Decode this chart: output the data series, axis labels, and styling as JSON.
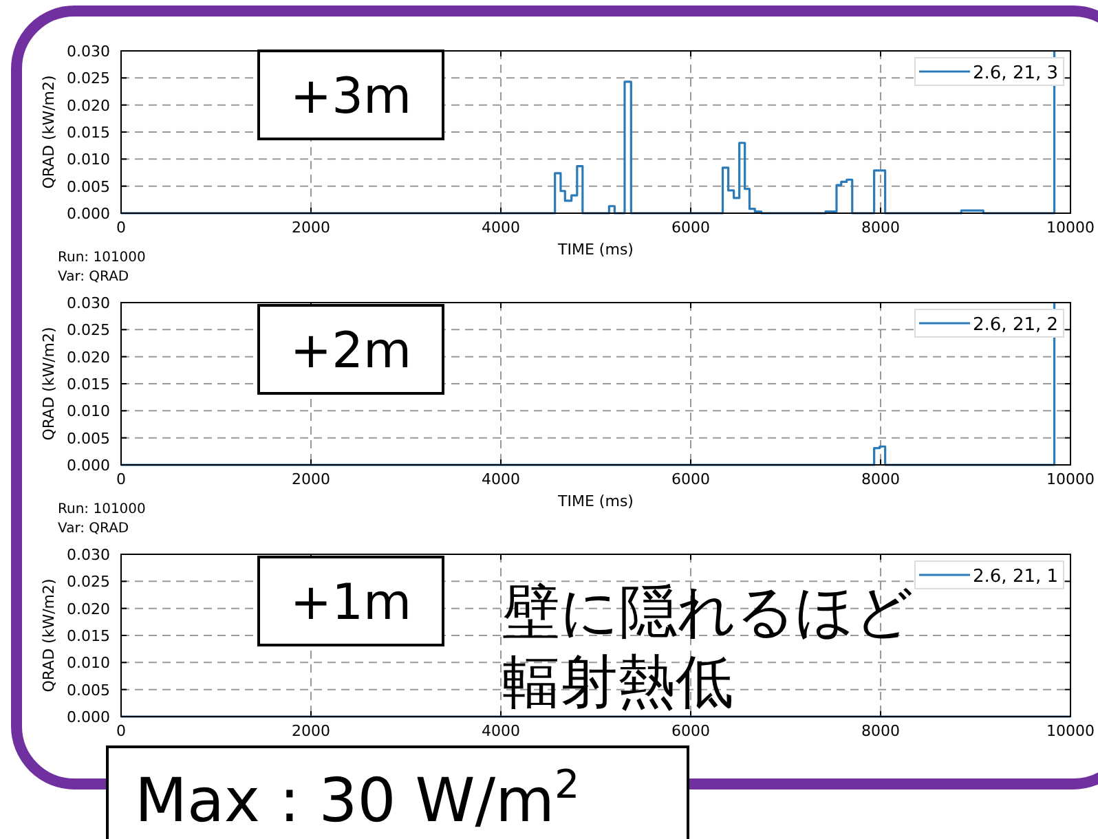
{
  "chart_data": [
    {
      "type": "step",
      "xlabel": "TIME (ms)",
      "ylabel": "QRAD (kW/m2)",
      "xlim": [
        0,
        10000
      ],
      "ylim": [
        0,
        0.03
      ],
      "xticks": [
        0,
        2000,
        4000,
        6000,
        8000,
        10000
      ],
      "yticks": [
        {
          "value": 0,
          "label": "0.000"
        },
        {
          "value": 0.005,
          "label": "0.005"
        },
        {
          "value": 0.01,
          "label": "0.010"
        },
        {
          "value": 0.015,
          "label": "0.015"
        },
        {
          "value": 0.02,
          "label": "0.020"
        },
        {
          "value": 0.025,
          "label": "0.025"
        },
        {
          "value": 0.03,
          "label": "0.030"
        }
      ],
      "grid": true,
      "legend": "top right",
      "x": [
        0,
        4570,
        4630,
        4676,
        4744,
        4803,
        4861,
        5140,
        5198,
        5304,
        5372,
        6337,
        6396,
        6454,
        6512,
        6570,
        6619,
        6676,
        6744,
        7420,
        7536,
        7585,
        7643,
        7701,
        7932,
        8048,
        8850,
        9082,
        9830
      ],
      "series": [
        {
          "name": "2.6, 21, 3",
          "color": "#2b7bba",
          "values": [
            0,
            0.0074,
            0.0041,
            0.0023,
            0.0033,
            0.0087,
            0,
            0.0013,
            0,
            0.0243,
            0,
            0.0084,
            0.0042,
            0.0028,
            0.013,
            0.0045,
            0.0008,
            0.0003,
            0,
            0.0003,
            0.0052,
            0.0058,
            0.0062,
            0,
            0.0079,
            0,
            0.0005,
            0,
            0.03
          ]
        }
      ],
      "annotations": [
        "+3m",
        "Run: 101000",
        "Var: QRAD"
      ]
    },
    {
      "type": "step",
      "xlabel": "TIME (ms)",
      "ylabel": "QRAD (kW/m2)",
      "xlim": [
        0,
        10000
      ],
      "ylim": [
        0,
        0.03
      ],
      "xticks": [
        0,
        2000,
        4000,
        6000,
        8000,
        10000
      ],
      "yticks": [
        {
          "value": 0,
          "label": "0.000"
        },
        {
          "value": 0.005,
          "label": "0.005"
        },
        {
          "value": 0.01,
          "label": "0.010"
        },
        {
          "value": 0.015,
          "label": "0.015"
        },
        {
          "value": 0.02,
          "label": "0.020"
        },
        {
          "value": 0.025,
          "label": "0.025"
        },
        {
          "value": 0.03,
          "label": "0.030"
        }
      ],
      "grid": true,
      "legend": "top right",
      "x": [
        0,
        7932,
        7990,
        8048,
        9830
      ],
      "series": [
        {
          "name": "2.6, 21, 2",
          "color": "#2b7bba",
          "values": [
            0,
            0.0031,
            0.0034,
            0,
            0.03
          ]
        }
      ],
      "annotations": [
        "+2m",
        "Run: 101000",
        "Var: QRAD"
      ]
    },
    {
      "type": "step",
      "ylabel": "QRAD (kW/m2)",
      "xlim": [
        0,
        10000
      ],
      "ylim": [
        0,
        0.03
      ],
      "xticks": [
        0,
        2000,
        4000,
        6000,
        8000,
        10000
      ],
      "yticks": [
        {
          "value": 0,
          "label": "0.000"
        },
        {
          "value": 0.005,
          "label": "0.005"
        },
        {
          "value": 0.01,
          "label": "0.010"
        },
        {
          "value": 0.015,
          "label": "0.015"
        },
        {
          "value": 0.02,
          "label": "0.020"
        },
        {
          "value": 0.025,
          "label": "0.025"
        },
        {
          "value": 0.03,
          "label": "0.030"
        }
      ],
      "grid": true,
      "legend": "top right",
      "x": [
        0,
        10000
      ],
      "series": [
        {
          "name": "2.6, 21, 1",
          "color": "#2b7bba",
          "values": [
            0,
            0
          ]
        }
      ],
      "annotations": [
        "+1m",
        "壁に隠れるほど",
        "輻射熱低",
        "Max : 30 W/m$^{2}$"
      ]
    }
  ]
}
